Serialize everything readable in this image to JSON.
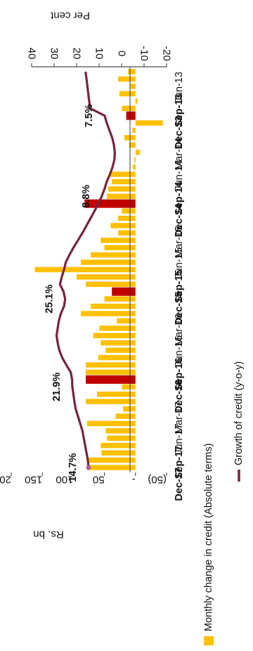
{
  "chart_data": {
    "type": "bar+line",
    "orientation": "rotated-90-clockwise",
    "x_tick_labels": [
      "Jun-13",
      "Sep-13",
      "Dec-13",
      "Mar-14",
      "Jun-14",
      "Sep-14",
      "Dec-14",
      "Mar-15",
      "Jun-15",
      "Sep-15",
      "Dec-15",
      "Mar-16",
      "Jun-16",
      "Sep-16",
      "Dec-16",
      "Mar-17",
      "Jun-17",
      "Sep-17",
      "Dec-17"
    ],
    "bold_ticks": [
      "Sep-13",
      "Dec-13",
      "Sep-14",
      "Dec-14",
      "Sep-15",
      "Dec-15",
      "Sep-16",
      "Dec-16",
      "Sep-17",
      "Dec-17"
    ],
    "left_axis": {
      "label": "Rs. bn",
      "tick_labels": [
        "200",
        "150",
        "100",
        "50",
        "-",
        "(50)"
      ],
      "tick_values": [
        200,
        150,
        100,
        50,
        0,
        -50
      ],
      "range": [
        -50,
        200
      ]
    },
    "right_axis": {
      "label": "Per cent",
      "tick_labels": [
        "40",
        "30",
        "20",
        "10",
        "0",
        "-10",
        "-20"
      ],
      "tick_values": [
        40,
        30,
        20,
        10,
        0,
        -10,
        -20
      ],
      "range": [
        -20,
        40
      ]
    },
    "months": [
      "Jun-13",
      "Jul-13",
      "Aug-13",
      "Sep-13",
      "Oct-13",
      "Nov-13",
      "Dec-13",
      "Jan-14",
      "Feb-14",
      "Mar-14",
      "Apr-14",
      "May-14",
      "Jun-14",
      "Jul-14",
      "Aug-14",
      "Sep-14",
      "Oct-14",
      "Nov-14",
      "Dec-14",
      "Jan-15",
      "Feb-15",
      "Mar-15",
      "Apr-15",
      "May-15",
      "Jun-15",
      "Jul-15",
      "Aug-15",
      "Sep-15",
      "Oct-15",
      "Nov-15",
      "Dec-15",
      "Jan-16",
      "Feb-16",
      "Mar-16",
      "Apr-16",
      "May-16",
      "Jun-16",
      "Jul-16",
      "Aug-16",
      "Sep-16",
      "Oct-16",
      "Nov-16",
      "Dec-16",
      "Jan-17",
      "Feb-17",
      "Mar-17",
      "Apr-17",
      "May-17",
      "Jun-17",
      "Jul-17",
      "Aug-17",
      "Sep-17",
      "Oct-17",
      "Nov-17",
      "Dec-17"
    ],
    "series": [
      {
        "name": "Monthly change in credit (Absolute terms)",
        "type": "bar",
        "axis": "left",
        "color": "#FFC000",
        "highlight_color": "#C00000",
        "highlight_months": [
          "Dec-13",
          "Dec-14",
          "Dec-15",
          "Dec-16"
        ],
        "values": [
          12,
          28,
          8,
          26,
          -3,
          22,
          15,
          -44,
          5,
          18,
          10,
          -7,
          2,
          4,
          42,
          38,
          44,
          46,
          82,
          22,
          28,
          40,
          28,
          56,
          50,
          72,
          88,
          162,
          95,
          80,
          38,
          50,
          72,
          88,
          30,
          58,
          68,
          56,
          48,
          60,
          80,
          80,
          80,
          22,
          62,
          80,
          20,
          32,
          78,
          48,
          46,
          56,
          55,
          78,
          78
        ]
      },
      {
        "name": "Growth of credit (y-o-y)",
        "type": "line",
        "axis": "right",
        "color": "#76253B",
        "values": [
          16.0,
          15.6,
          15.2,
          14.8,
          14.4,
          14.0,
          7.5,
          6.6,
          5.4,
          4.2,
          3.4,
          3.0,
          3.2,
          4.0,
          5.2,
          6.6,
          7.6,
          8.8,
          10.4,
          12.0,
          13.8,
          15.6,
          17.4,
          19.4,
          21.4,
          23.2,
          24.8,
          25.6,
          26.6,
          27.4,
          25.8,
          25.1,
          25.6,
          27.0,
          27.9,
          28.4,
          28.9,
          28.4,
          27.7,
          26.4,
          24.6,
          22.6,
          22.0,
          21.9,
          21.4,
          21.0,
          20.4,
          19.4,
          18.4,
          17.4,
          16.8,
          16.2,
          15.6,
          15.0,
          14.7
        ]
      }
    ],
    "annotations": [
      {
        "text": "7.5%",
        "month": "Dec-13",
        "value": 7.5
      },
      {
        "text": "8.8%",
        "month": "Nov-14",
        "value": 8.8
      },
      {
        "text": "25.1%",
        "month": "Jan-16",
        "value": 25.1
      },
      {
        "text": "21.9%",
        "month": "Jan-17",
        "value": 21.9
      },
      {
        "text": "14.7%",
        "month": "Dec-17",
        "value": 14.7
      }
    ],
    "legend": {
      "placement": "bottom",
      "entries": [
        "Monthly change in credit (Absolute terms)",
        "Growth of credit (y-o-y)"
      ]
    },
    "grid": false
  }
}
